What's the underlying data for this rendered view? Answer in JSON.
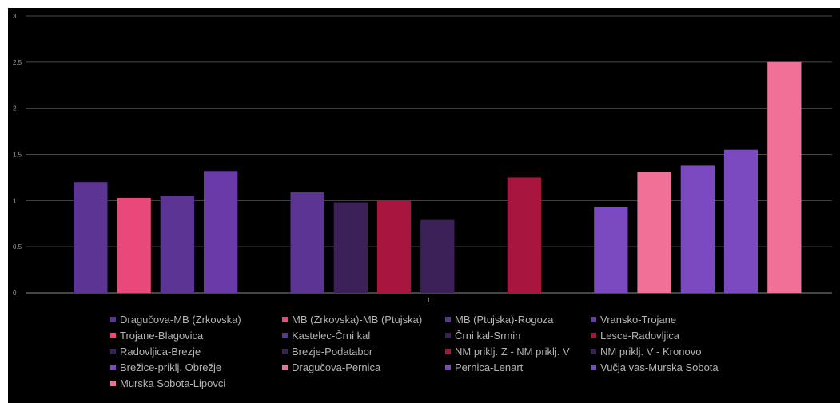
{
  "chart_data": {
    "type": "bar",
    "categories": [
      "1"
    ],
    "ylim": [
      0,
      3
    ],
    "yticks": [
      "0",
      "0.5",
      "1",
      "1.5",
      "2",
      "2.5",
      "3"
    ],
    "grid": true,
    "legend_position": "bottom",
    "series": [
      {
        "name": "Dragučova-MB (Zrkovska)",
        "value": 1.2,
        "color": "#5c3494"
      },
      {
        "name": "MB (Zrkovska)-MB (Ptujska)",
        "value": 1.03,
        "color": "#e8497a"
      },
      {
        "name": "MB (Ptujska)-Rogoza",
        "value": 1.05,
        "color": "#5c3494"
      },
      {
        "name": "Vransko-Trojane",
        "value": 1.32,
        "color": "#6a3ba8"
      },
      {
        "name": "Trojane-Blagovica",
        "value": null,
        "color": "#e8497a"
      },
      {
        "name": "Kastelec-Črni kal",
        "value": 1.09,
        "color": "#5c3494"
      },
      {
        "name": "Črni kal-Srmin",
        "value": 0.98,
        "color": "#3c2158"
      },
      {
        "name": "Lesce-Radovljica",
        "value": 1.0,
        "color": "#a8163e"
      },
      {
        "name": "Radovljica-Brezje",
        "value": 0.79,
        "color": "#3c2158"
      },
      {
        "name": "Brezje-Podatabor",
        "value": null,
        "color": "#3c2158"
      },
      {
        "name": "NM priklj. Z - NM priklj. V",
        "value": 1.25,
        "color": "#a8163e"
      },
      {
        "name": "NM priklj. V - Kronovo",
        "value": null,
        "color": "#3c2158"
      },
      {
        "name": "Brežice-priklj. Obrežje",
        "value": 0.93,
        "color": "#7b49c0"
      },
      {
        "name": "Dragučova-Pernica",
        "value": 1.31,
        "color": "#f07098"
      },
      {
        "name": "Pernica-Lenart",
        "value": 1.38,
        "color": "#7b49c0"
      },
      {
        "name": "Vučja vas-Murska Sobota",
        "value": 1.55,
        "color": "#7b49c0"
      },
      {
        "name": "Murska Sobota-Lipovci",
        "value": 2.5,
        "color": "#f07098"
      }
    ]
  }
}
